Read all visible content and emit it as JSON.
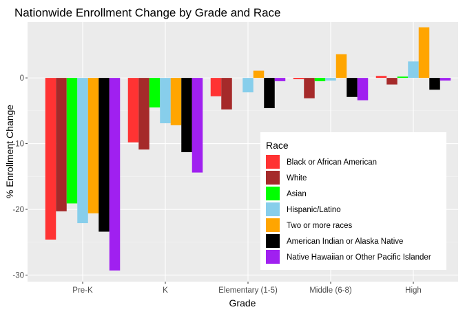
{
  "chart_data": {
    "type": "bar",
    "title": "Nationwide Enrollment Change by Grade and Race",
    "xlabel": "Grade",
    "ylabel": "% Enrollment Change",
    "categories": [
      "Pre-K",
      "K",
      "Elementary (1-5)",
      "Middle (6-8)",
      "High"
    ],
    "ylim": [
      -31,
      8.5
    ],
    "yticks": [
      -30,
      -20,
      -10,
      0
    ],
    "grid": true,
    "legend_title": "Race",
    "legend_position": "bottom-right",
    "series": [
      {
        "name": "Black or African American",
        "color": "#ff3333",
        "values": [
          -24.6,
          -9.8,
          -2.8,
          -0.2,
          0.3
        ]
      },
      {
        "name": "White",
        "color": "#a52a2a",
        "values": [
          -20.3,
          -10.9,
          -4.8,
          -3.1,
          -1.0
        ]
      },
      {
        "name": "Asian",
        "color": "#00ff00",
        "values": [
          -19.1,
          -4.5,
          0.0,
          -0.5,
          0.2
        ]
      },
      {
        "name": "Hispanic/Latino",
        "color": "#87ceeb",
        "values": [
          -22.1,
          -6.9,
          -2.2,
          -0.4,
          2.5
        ]
      },
      {
        "name": "Two or more races",
        "color": "#ffa500",
        "values": [
          -20.6,
          -7.2,
          1.1,
          3.6,
          7.7
        ]
      },
      {
        "name": "American Indian or Alaska Native",
        "color": "#000000",
        "values": [
          -23.4,
          -11.3,
          -4.6,
          -2.9,
          -1.8
        ]
      },
      {
        "name": "Native Hawaiian or Other Pacific Islander",
        "color": "#a020f0",
        "values": [
          -29.3,
          -14.4,
          -0.5,
          -3.4,
          -0.4
        ]
      }
    ]
  }
}
